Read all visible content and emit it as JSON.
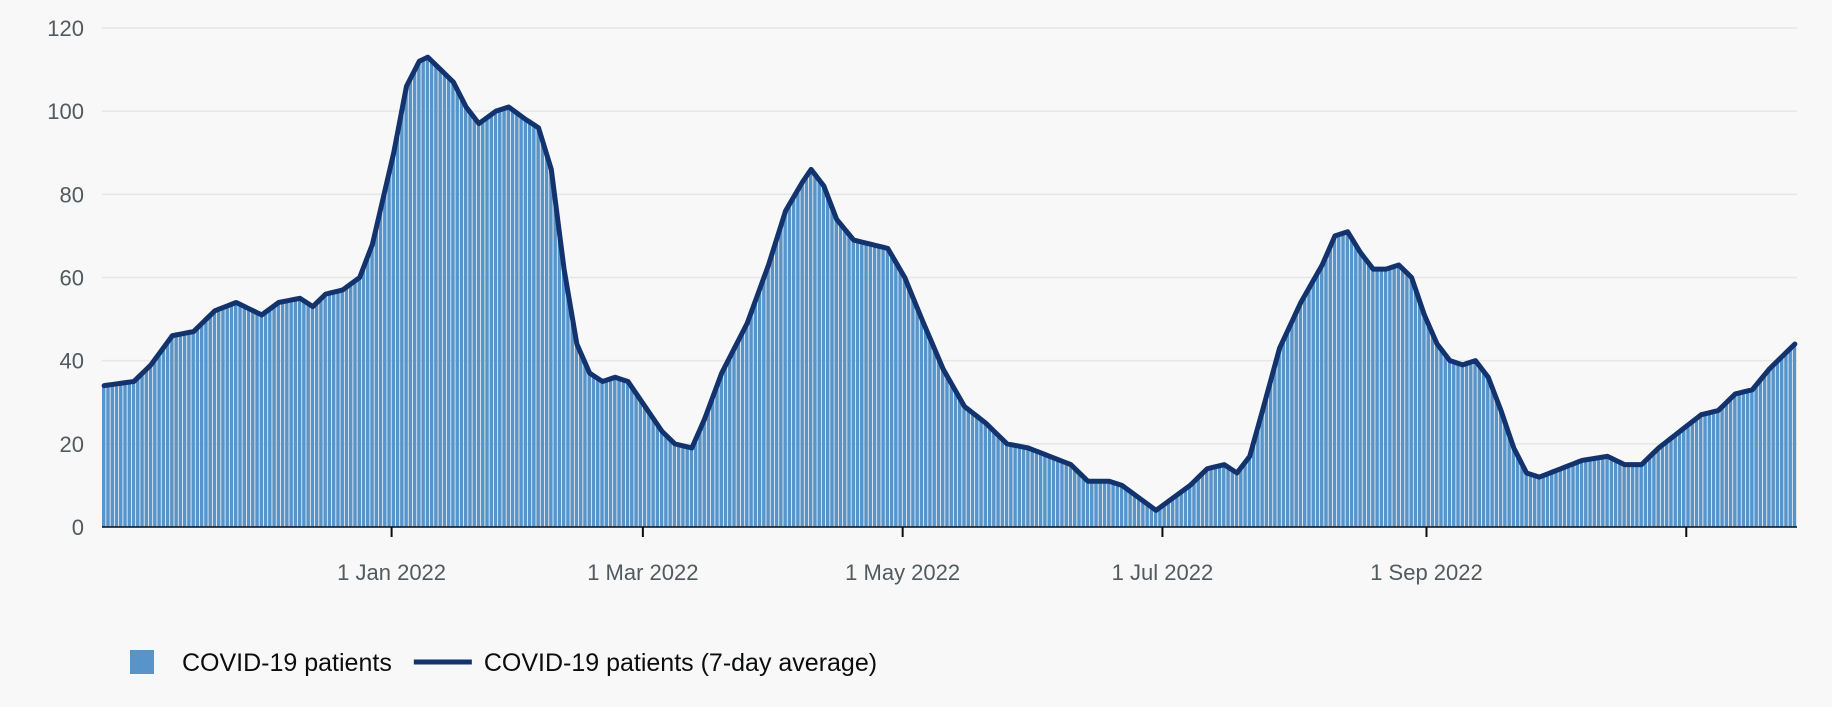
{
  "colors": {
    "bar": "#5694ca",
    "line": "#12336e",
    "grid": "#e6e6e6",
    "axis": "#0b0c0c",
    "background": "#f8f8f8"
  },
  "legend": {
    "items": [
      {
        "label": "COVID-19 patients",
        "kind": "bar"
      },
      {
        "label": "COVID-19 patients (7-day average)",
        "kind": "line"
      }
    ]
  },
  "chart_data": {
    "type": "bar",
    "title": "",
    "xlabel": "",
    "ylabel": "",
    "x_range": [
      "2021-10-25",
      "2022-11-26"
    ],
    "ylim": [
      0,
      120
    ],
    "grid": true,
    "legend_position": "bottom-left",
    "y_ticks": [
      0,
      20,
      40,
      60,
      80,
      100,
      120
    ],
    "x_ticks": [
      {
        "date": "2022-01-01",
        "label": "1 Jan 2022"
      },
      {
        "date": "2022-03-01",
        "label": "1 Mar 2022"
      },
      {
        "date": "2022-05-01",
        "label": "1 May 2022"
      },
      {
        "date": "2022-07-01",
        "label": "1 Jul 2022"
      },
      {
        "date": "2022-09-01",
        "label": "1 Sep 2022"
      },
      {
        "date": "2022-11-01",
        "label": ""
      }
    ],
    "series": [
      {
        "name": "COVID-19 patients",
        "type": "bar",
        "anchors": [
          [
            "2021-10-25",
            34
          ],
          [
            "2021-11-01",
            35
          ],
          [
            "2021-11-05",
            39
          ],
          [
            "2021-11-10",
            46
          ],
          [
            "2021-11-15",
            47
          ],
          [
            "2021-11-20",
            52
          ],
          [
            "2021-11-25",
            54
          ],
          [
            "2021-12-01",
            51
          ],
          [
            "2021-12-05",
            54
          ],
          [
            "2021-12-10",
            55
          ],
          [
            "2021-12-13",
            53
          ],
          [
            "2021-12-16",
            56
          ],
          [
            "2021-12-20",
            57
          ],
          [
            "2021-12-24",
            60
          ],
          [
            "2021-12-27",
            68
          ],
          [
            "2022-01-01",
            90
          ],
          [
            "2022-01-04",
            106
          ],
          [
            "2022-01-07",
            112
          ],
          [
            "2022-01-09",
            113
          ],
          [
            "2022-01-11",
            111
          ],
          [
            "2022-01-15",
            107
          ],
          [
            "2022-01-18",
            101
          ],
          [
            "2022-01-21",
            97
          ],
          [
            "2022-01-25",
            100
          ],
          [
            "2022-01-28",
            101
          ],
          [
            "2022-02-01",
            98
          ],
          [
            "2022-02-04",
            96
          ],
          [
            "2022-02-07",
            86
          ],
          [
            "2022-02-10",
            62
          ],
          [
            "2022-02-13",
            44
          ],
          [
            "2022-02-16",
            37
          ],
          [
            "2022-02-19",
            35
          ],
          [
            "2022-02-22",
            36
          ],
          [
            "2022-02-25",
            35
          ],
          [
            "2022-03-01",
            29
          ],
          [
            "2022-03-05",
            23
          ],
          [
            "2022-03-08",
            20
          ],
          [
            "2022-03-12",
            19
          ],
          [
            "2022-03-15",
            26
          ],
          [
            "2022-03-19",
            37
          ],
          [
            "2022-03-25",
            49
          ],
          [
            "2022-03-30",
            63
          ],
          [
            "2022-04-03",
            76
          ],
          [
            "2022-04-07",
            83
          ],
          [
            "2022-04-09",
            86
          ],
          [
            "2022-04-12",
            82
          ],
          [
            "2022-04-15",
            74
          ],
          [
            "2022-04-19",
            69
          ],
          [
            "2022-04-23",
            68
          ],
          [
            "2022-04-27",
            67
          ],
          [
            "2022-05-01",
            60
          ],
          [
            "2022-05-05",
            50
          ],
          [
            "2022-05-10",
            38
          ],
          [
            "2022-05-15",
            29
          ],
          [
            "2022-05-20",
            25
          ],
          [
            "2022-05-25",
            20
          ],
          [
            "2022-05-30",
            19
          ],
          [
            "2022-06-04",
            17
          ],
          [
            "2022-06-09",
            15
          ],
          [
            "2022-06-13",
            11
          ],
          [
            "2022-06-18",
            11
          ],
          [
            "2022-06-21",
            10
          ],
          [
            "2022-06-25",
            7
          ],
          [
            "2022-06-29",
            4
          ],
          [
            "2022-07-03",
            7
          ],
          [
            "2022-07-07",
            10
          ],
          [
            "2022-07-11",
            14
          ],
          [
            "2022-07-15",
            15
          ],
          [
            "2022-07-18",
            13
          ],
          [
            "2022-07-21",
            17
          ],
          [
            "2022-07-24",
            28
          ],
          [
            "2022-07-28",
            43
          ],
          [
            "2022-08-02",
            54
          ],
          [
            "2022-08-07",
            63
          ],
          [
            "2022-08-10",
            70
          ],
          [
            "2022-08-13",
            71
          ],
          [
            "2022-08-16",
            66
          ],
          [
            "2022-08-19",
            62
          ],
          [
            "2022-08-22",
            62
          ],
          [
            "2022-08-25",
            63
          ],
          [
            "2022-08-28",
            60
          ],
          [
            "2022-08-31",
            51
          ],
          [
            "2022-09-03",
            44
          ],
          [
            "2022-09-06",
            40
          ],
          [
            "2022-09-09",
            39
          ],
          [
            "2022-09-12",
            40
          ],
          [
            "2022-09-15",
            36
          ],
          [
            "2022-09-18",
            28
          ],
          [
            "2022-09-21",
            19
          ],
          [
            "2022-09-24",
            13
          ],
          [
            "2022-09-27",
            12
          ],
          [
            "2022-10-02",
            14
          ],
          [
            "2022-10-07",
            16
          ],
          [
            "2022-10-13",
            17
          ],
          [
            "2022-10-17",
            15
          ],
          [
            "2022-10-21",
            15
          ],
          [
            "2022-10-25",
            19
          ],
          [
            "2022-10-30",
            23
          ],
          [
            "2022-11-04",
            27
          ],
          [
            "2022-11-08",
            28
          ],
          [
            "2022-11-12",
            32
          ],
          [
            "2022-11-16",
            33
          ],
          [
            "2022-11-20",
            38
          ],
          [
            "2022-11-24",
            42
          ],
          [
            "2022-11-26",
            44
          ]
        ]
      },
      {
        "name": "COVID-19 patients (7-day average)",
        "type": "line",
        "anchors": [
          [
            "2021-10-25",
            34
          ],
          [
            "2021-11-01",
            35
          ],
          [
            "2021-11-05",
            39
          ],
          [
            "2021-11-10",
            46
          ],
          [
            "2021-11-15",
            47
          ],
          [
            "2021-11-20",
            52
          ],
          [
            "2021-11-25",
            54
          ],
          [
            "2021-12-01",
            51
          ],
          [
            "2021-12-05",
            54
          ],
          [
            "2021-12-10",
            55
          ],
          [
            "2021-12-13",
            53
          ],
          [
            "2021-12-16",
            56
          ],
          [
            "2021-12-20",
            57
          ],
          [
            "2021-12-24",
            60
          ],
          [
            "2021-12-27",
            68
          ],
          [
            "2022-01-01",
            90
          ],
          [
            "2022-01-04",
            106
          ],
          [
            "2022-01-07",
            112
          ],
          [
            "2022-01-09",
            113
          ],
          [
            "2022-01-11",
            111
          ],
          [
            "2022-01-15",
            107
          ],
          [
            "2022-01-18",
            101
          ],
          [
            "2022-01-21",
            97
          ],
          [
            "2022-01-25",
            100
          ],
          [
            "2022-01-28",
            101
          ],
          [
            "2022-02-01",
            98
          ],
          [
            "2022-02-04",
            96
          ],
          [
            "2022-02-07",
            86
          ],
          [
            "2022-02-10",
            62
          ],
          [
            "2022-02-13",
            44
          ],
          [
            "2022-02-16",
            37
          ],
          [
            "2022-02-19",
            35
          ],
          [
            "2022-02-22",
            36
          ],
          [
            "2022-02-25",
            35
          ],
          [
            "2022-03-01",
            29
          ],
          [
            "2022-03-05",
            23
          ],
          [
            "2022-03-08",
            20
          ],
          [
            "2022-03-12",
            19
          ],
          [
            "2022-03-15",
            26
          ],
          [
            "2022-03-19",
            37
          ],
          [
            "2022-03-25",
            49
          ],
          [
            "2022-03-30",
            63
          ],
          [
            "2022-04-03",
            76
          ],
          [
            "2022-04-07",
            83
          ],
          [
            "2022-04-09",
            86
          ],
          [
            "2022-04-12",
            82
          ],
          [
            "2022-04-15",
            74
          ],
          [
            "2022-04-19",
            69
          ],
          [
            "2022-04-23",
            68
          ],
          [
            "2022-04-27",
            67
          ],
          [
            "2022-05-01",
            60
          ],
          [
            "2022-05-05",
            50
          ],
          [
            "2022-05-10",
            38
          ],
          [
            "2022-05-15",
            29
          ],
          [
            "2022-05-20",
            25
          ],
          [
            "2022-05-25",
            20
          ],
          [
            "2022-05-30",
            19
          ],
          [
            "2022-06-04",
            17
          ],
          [
            "2022-06-09",
            15
          ],
          [
            "2022-06-13",
            11
          ],
          [
            "2022-06-18",
            11
          ],
          [
            "2022-06-21",
            10
          ],
          [
            "2022-06-25",
            7
          ],
          [
            "2022-06-29",
            4
          ],
          [
            "2022-07-03",
            7
          ],
          [
            "2022-07-07",
            10
          ],
          [
            "2022-07-11",
            14
          ],
          [
            "2022-07-15",
            15
          ],
          [
            "2022-07-18",
            13
          ],
          [
            "2022-07-21",
            17
          ],
          [
            "2022-07-24",
            28
          ],
          [
            "2022-07-28",
            43
          ],
          [
            "2022-08-02",
            54
          ],
          [
            "2022-08-07",
            63
          ],
          [
            "2022-08-10",
            70
          ],
          [
            "2022-08-13",
            71
          ],
          [
            "2022-08-16",
            66
          ],
          [
            "2022-08-19",
            62
          ],
          [
            "2022-08-22",
            62
          ],
          [
            "2022-08-25",
            63
          ],
          [
            "2022-08-28",
            60
          ],
          [
            "2022-08-31",
            51
          ],
          [
            "2022-09-03",
            44
          ],
          [
            "2022-09-06",
            40
          ],
          [
            "2022-09-09",
            39
          ],
          [
            "2022-09-12",
            40
          ],
          [
            "2022-09-15",
            36
          ],
          [
            "2022-09-18",
            28
          ],
          [
            "2022-09-21",
            19
          ],
          [
            "2022-09-24",
            13
          ],
          [
            "2022-09-27",
            12
          ],
          [
            "2022-10-02",
            14
          ],
          [
            "2022-10-07",
            16
          ],
          [
            "2022-10-13",
            17
          ],
          [
            "2022-10-17",
            15
          ],
          [
            "2022-10-21",
            15
          ],
          [
            "2022-10-25",
            19
          ],
          [
            "2022-10-30",
            23
          ],
          [
            "2022-11-04",
            27
          ],
          [
            "2022-11-08",
            28
          ],
          [
            "2022-11-12",
            32
          ],
          [
            "2022-11-16",
            33
          ],
          [
            "2022-11-20",
            38
          ],
          [
            "2022-11-24",
            42
          ],
          [
            "2022-11-26",
            44
          ]
        ]
      }
    ]
  }
}
